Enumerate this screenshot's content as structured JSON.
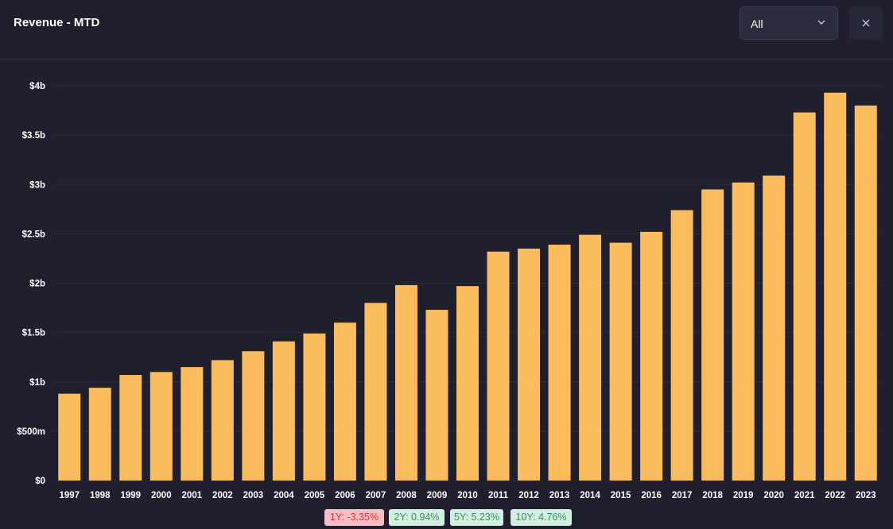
{
  "header": {
    "title": "Revenue - MTD",
    "filter": {
      "selected": "All"
    },
    "close_icon": "close-icon"
  },
  "colors": {
    "background": "#1f1f2d",
    "bar": "#fbbc5d",
    "negative_bg": "#f7bfc3",
    "negative_text": "#e0343f",
    "positive_bg": "#d3efe1",
    "positive_text": "#3f8c62"
  },
  "chart_data": {
    "type": "bar",
    "title": "",
    "xlabel": "",
    "ylabel": "",
    "grid": true,
    "legend": "none",
    "categories": [
      "1997",
      "1998",
      "1999",
      "2000",
      "2001",
      "2002",
      "2003",
      "2004",
      "2005",
      "2006",
      "2007",
      "2008",
      "2009",
      "2010",
      "2011",
      "2012",
      "2013",
      "2014",
      "2015",
      "2016",
      "2017",
      "2018",
      "2019",
      "2020",
      "2021",
      "2022",
      "2023"
    ],
    "values": [
      0.88,
      0.94,
      1.07,
      1.1,
      1.15,
      1.22,
      1.31,
      1.41,
      1.49,
      1.6,
      1.8,
      1.98,
      1.73,
      1.97,
      2.32,
      2.35,
      2.39,
      2.49,
      2.41,
      2.52,
      2.74,
      2.95,
      3.02,
      3.09,
      3.73,
      3.93,
      3.8
    ],
    "value_unit": "billions USD",
    "ylim": [
      0,
      4
    ],
    "yticks": [
      0,
      0.5,
      1,
      1.5,
      2,
      2.5,
      3,
      3.5,
      4
    ],
    "ytick_labels": [
      "$0",
      "$500m",
      "$1b",
      "$1.5b",
      "$2b",
      "$2.5b",
      "$3b",
      "$3.5b",
      "$4b"
    ]
  },
  "growth": [
    {
      "label": "1Y: -3.35%",
      "sign": "negative"
    },
    {
      "label": "2Y: 0.94%",
      "sign": "positive"
    },
    {
      "label": "5Y: 5.23%",
      "sign": "positive"
    },
    {
      "label": "10Y: 4.76%",
      "sign": "positive"
    }
  ]
}
